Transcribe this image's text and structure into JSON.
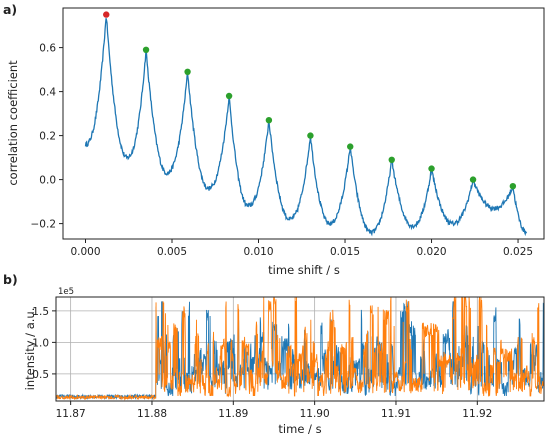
{
  "panel_a_label": "a)",
  "panel_b_label": "b)",
  "chart_data": [
    {
      "type": "line",
      "panel": "a)",
      "xlabel": "time shift / s",
      "ylabel": "correlation coefficient",
      "xlim": [
        -0.0013,
        0.0265
      ],
      "ylim": [
        -0.27,
        0.78
      ],
      "xticks": [
        0.0,
        0.005,
        0.01,
        0.015,
        0.02,
        0.025
      ],
      "xtick_labels": [
        "0.000",
        "0.005",
        "0.010",
        "0.015",
        "0.020",
        "0.025"
      ],
      "yticks": [
        -0.2,
        0.0,
        0.2,
        0.4,
        0.6
      ],
      "ytick_labels": [
        "−0.2",
        "0.0",
        "0.2",
        "0.4",
        "0.6"
      ],
      "grid": false,
      "series": [
        {
          "color": "#1f77b4",
          "period": 0.00236,
          "x_start": 0.0,
          "x_end": 0.0255,
          "peaks": [
            {
              "x": 0.0012,
              "y": 0.75
            },
            {
              "x": 0.0035,
              "y": 0.59
            },
            {
              "x": 0.0059,
              "y": 0.49
            },
            {
              "x": 0.0083,
              "y": 0.38
            },
            {
              "x": 0.0106,
              "y": 0.27
            },
            {
              "x": 0.013,
              "y": 0.2
            },
            {
              "x": 0.0153,
              "y": 0.15
            },
            {
              "x": 0.0177,
              "y": 0.09
            },
            {
              "x": 0.02,
              "y": 0.05
            },
            {
              "x": 0.0224,
              "y": 0.0
            },
            {
              "x": 0.0247,
              "y": -0.03
            }
          ],
          "troughs": [
            {
              "x": 0.0,
              "y": 0.16
            },
            {
              "x": 0.0024,
              "y": 0.1
            },
            {
              "x": 0.0047,
              "y": 0.03
            },
            {
              "x": 0.0071,
              "y": -0.04
            },
            {
              "x": 0.0094,
              "y": -0.12
            },
            {
              "x": 0.0118,
              "y": -0.18
            },
            {
              "x": 0.0141,
              "y": -0.2
            },
            {
              "x": 0.0165,
              "y": -0.24
            },
            {
              "x": 0.0189,
              "y": -0.21
            },
            {
              "x": 0.0212,
              "y": -0.2
            },
            {
              "x": 0.0236,
              "y": -0.13
            },
            {
              "x": 0.0255,
              "y": -0.24
            }
          ]
        }
      ],
      "markers": [
        {
          "x": 0.0012,
          "y": 0.75,
          "color": "#d62728"
        },
        {
          "x": 0.0035,
          "y": 0.59,
          "color": "#2ca02c"
        },
        {
          "x": 0.0059,
          "y": 0.49,
          "color": "#2ca02c"
        },
        {
          "x": 0.0083,
          "y": 0.38,
          "color": "#2ca02c"
        },
        {
          "x": 0.0106,
          "y": 0.27,
          "color": "#2ca02c"
        },
        {
          "x": 0.013,
          "y": 0.2,
          "color": "#2ca02c"
        },
        {
          "x": 0.0153,
          "y": 0.15,
          "color": "#2ca02c"
        },
        {
          "x": 0.0177,
          "y": 0.09,
          "color": "#2ca02c"
        },
        {
          "x": 0.02,
          "y": 0.05,
          "color": "#2ca02c"
        },
        {
          "x": 0.0224,
          "y": 0.0,
          "color": "#2ca02c"
        },
        {
          "x": 0.0247,
          "y": -0.03,
          "color": "#2ca02c"
        }
      ]
    },
    {
      "type": "line",
      "panel": "b)",
      "xlabel": "time / s",
      "ylabel": "intensity / a.u.",
      "offset_label": "1e5",
      "xlim": [
        11.8682,
        11.9282
      ],
      "ylim": [
        0.07,
        1.72
      ],
      "xticks": [
        11.87,
        11.88,
        11.89,
        11.9,
        11.91,
        11.92
      ],
      "xtick_labels": [
        "11.87",
        "11.88",
        "11.89",
        "11.90",
        "11.91",
        "11.92"
      ],
      "yticks": [
        0.5,
        1.0,
        1.5
      ],
      "ytick_labels": [
        "0.5",
        "1.0",
        "1.5"
      ],
      "grid": true,
      "signal_onset_x": 11.8805,
      "series": [
        {
          "color": "#1f77b4",
          "baseline": 0.14,
          "active_min": 0.25,
          "active_max": 1.65
        },
        {
          "color": "#ff7f0e",
          "baseline": 0.13,
          "active_min": 0.18,
          "active_max": 1.72
        }
      ]
    }
  ]
}
